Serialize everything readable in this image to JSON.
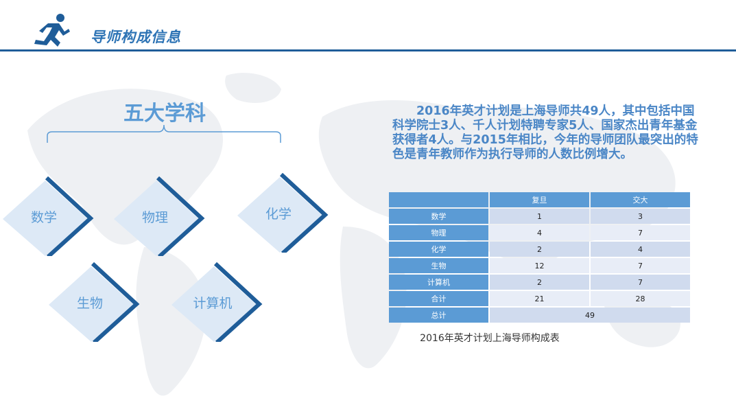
{
  "header": {
    "title": "导师构成信息",
    "icon": "running-man-icon",
    "accent_color": "#1f5d99"
  },
  "subjects": {
    "title": "五大学科",
    "items": [
      "数学",
      "物理",
      "化学",
      "生物",
      "计算机"
    ]
  },
  "description": "2016年英才计划是上海导师共49人，其中包括中国科学院士3人、千人计划特聘专家5人、国家杰出青年基金获得者4人。与2015年相比，今年的导师团队最突出的特色是青年教师作为执行导师的人数比例增大。",
  "table": {
    "columns": [
      "",
      "复旦",
      "交大"
    ],
    "rows": [
      {
        "label": "数学",
        "fudan": "1",
        "jiaoda": "3"
      },
      {
        "label": "物理",
        "fudan": "4",
        "jiaoda": "7"
      },
      {
        "label": "化学",
        "fudan": "2",
        "jiaoda": "4"
      },
      {
        "label": "生物",
        "fudan": "12",
        "jiaoda": "7"
      },
      {
        "label": "计算机",
        "fudan": "2",
        "jiaoda": "7"
      },
      {
        "label": "合计",
        "fudan": "21",
        "jiaoda": "28"
      }
    ],
    "total_label": "总计",
    "total_value": "49",
    "caption": "2016年英才计划上海导师构成表"
  },
  "colors": {
    "primary": "#5b9bd5",
    "dark_blue": "#1f5d99",
    "diamond_fill": "#dde9f6"
  }
}
